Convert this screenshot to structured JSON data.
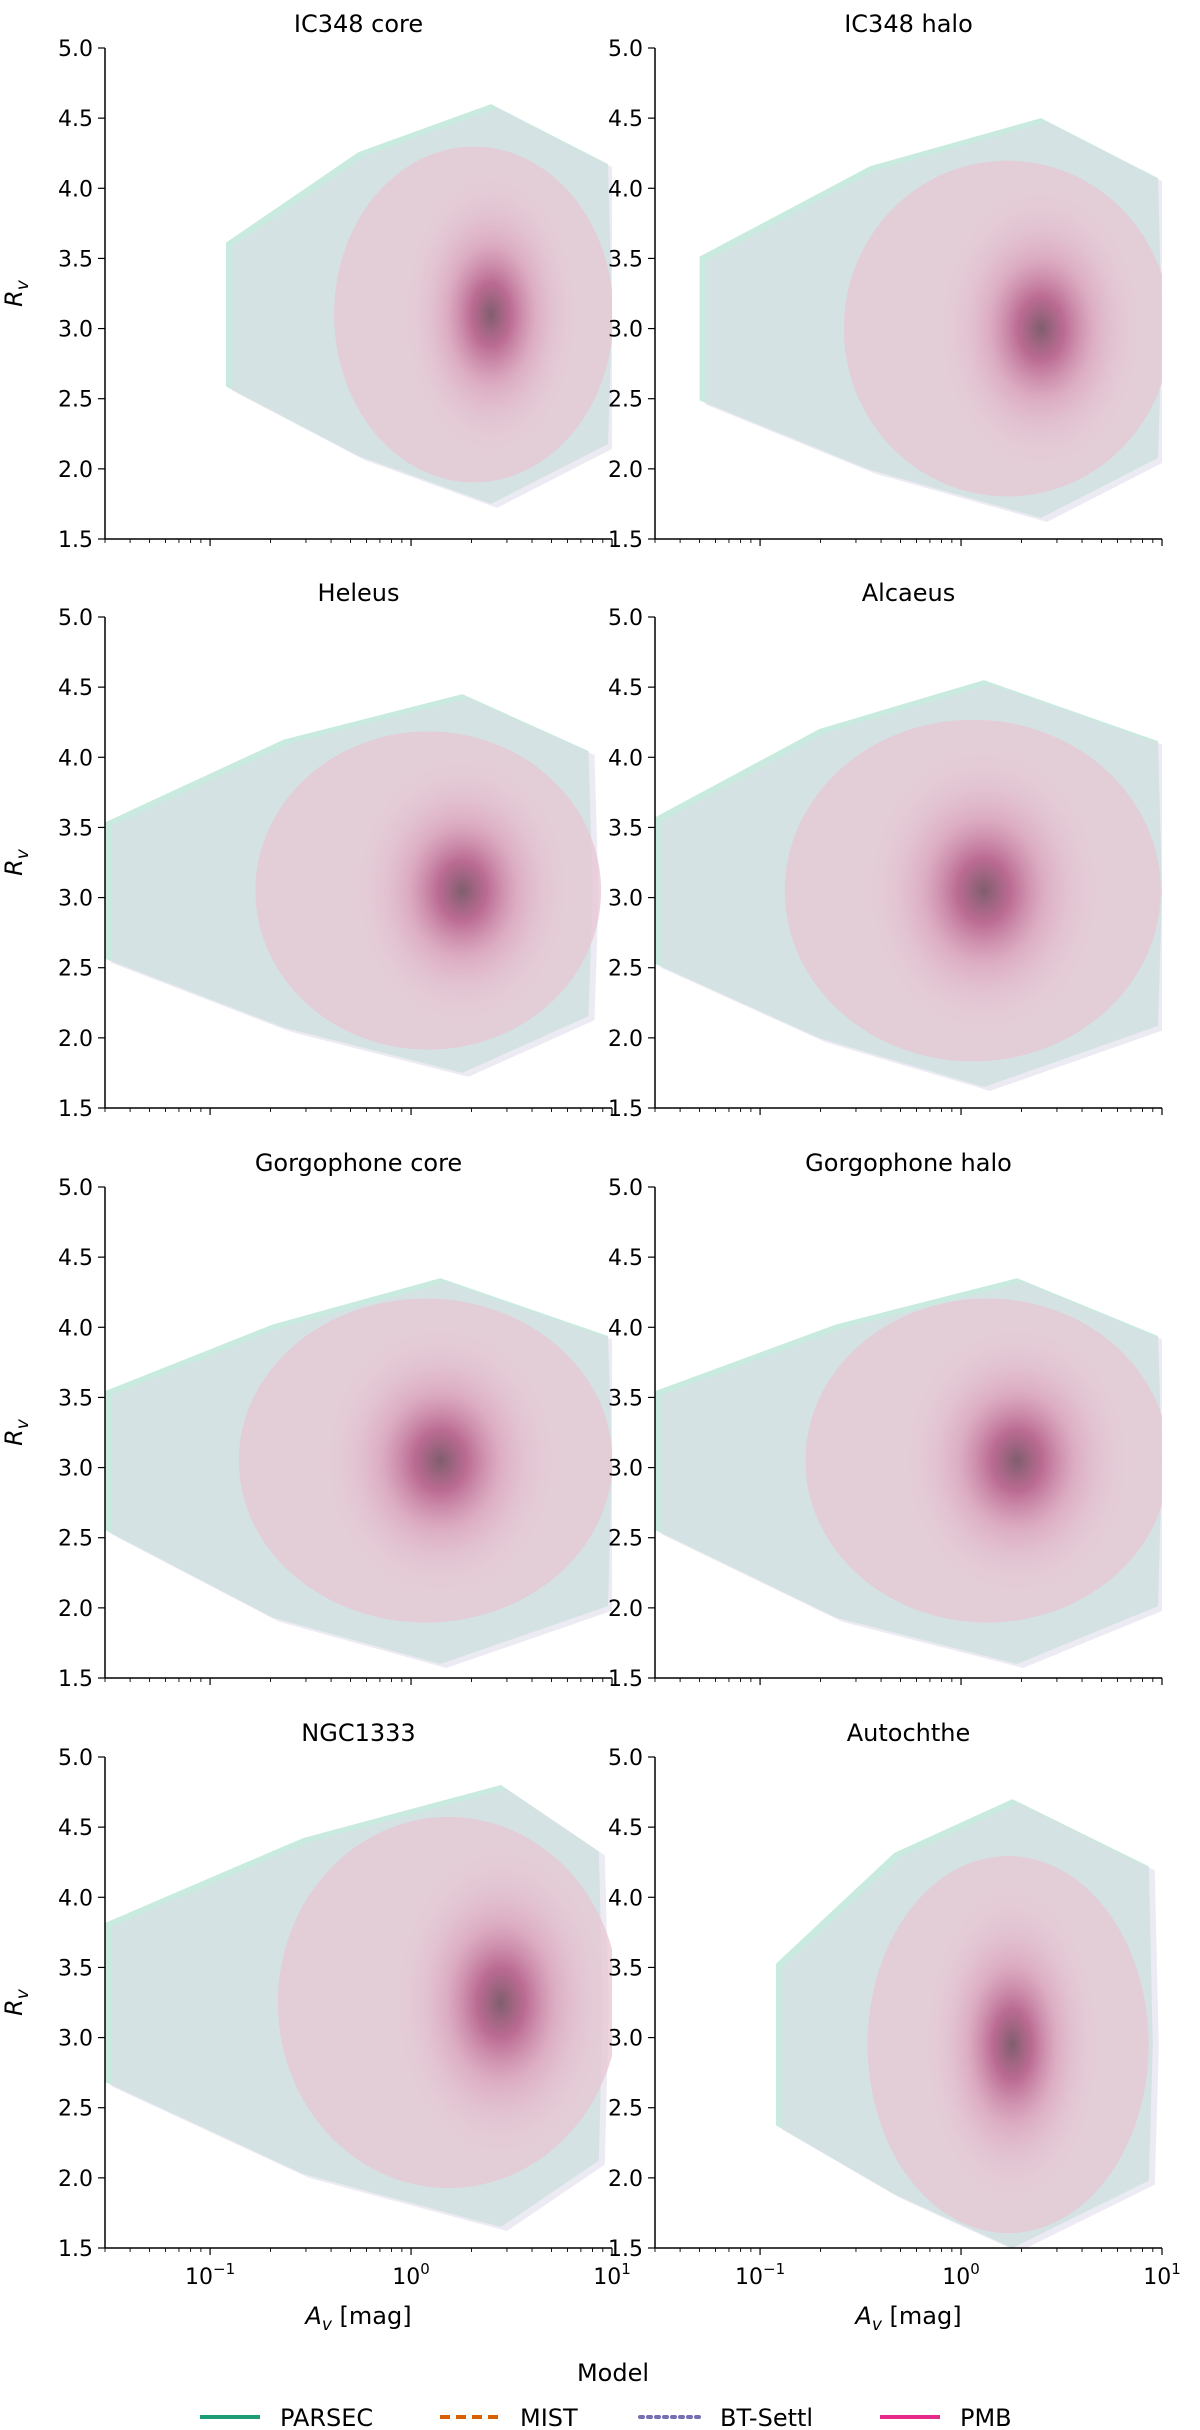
{
  "chart_data": {
    "type": "heatmap",
    "x_scale": "log",
    "xlim": [
      0.03,
      10
    ],
    "ylim": [
      1.5,
      5.0
    ],
    "xlabel": "A_v [mag]",
    "ylabel": "R_v",
    "x_ticks": [
      {
        "value": 0.1,
        "base": "10",
        "exp": "−1"
      },
      {
        "value": 1,
        "base": "10",
        "exp": "0"
      },
      {
        "value": 10,
        "base": "10",
        "exp": "1"
      }
    ],
    "y_ticks": [
      {
        "value": 1.5,
        "label": "1.5"
      },
      {
        "value": 2.0,
        "label": "2.0"
      },
      {
        "value": 2.5,
        "label": "2.5"
      },
      {
        "value": 3.0,
        "label": "3.0"
      },
      {
        "value": 3.5,
        "label": "3.5"
      },
      {
        "value": 4.0,
        "label": "4.0"
      },
      {
        "value": 4.5,
        "label": "4.5"
      },
      {
        "value": 5.0,
        "label": "5.0"
      }
    ],
    "panels": [
      {
        "title": "IC348 core",
        "av_range": [
          0.12,
          10
        ],
        "rv_range": [
          1.75,
          4.6
        ],
        "peak": [
          2.5,
          3.1
        ]
      },
      {
        "title": "IC348 halo",
        "av_range": [
          0.05,
          10
        ],
        "rv_range": [
          1.65,
          4.5
        ],
        "peak": [
          2.5,
          3.0
        ]
      },
      {
        "title": "Heleus",
        "av_range": [
          0.03,
          8
        ],
        "rv_range": [
          1.75,
          4.45
        ],
        "peak": [
          1.8,
          3.05
        ]
      },
      {
        "title": "Alcaeus",
        "av_range": [
          0.03,
          10
        ],
        "rv_range": [
          1.65,
          4.55
        ],
        "peak": [
          1.3,
          3.05
        ]
      },
      {
        "title": "Gorgophone core",
        "av_range": [
          0.03,
          10
        ],
        "rv_range": [
          1.6,
          4.35
        ],
        "peak": [
          1.4,
          3.05
        ]
      },
      {
        "title": "Gorgophone halo",
        "av_range": [
          0.03,
          10
        ],
        "rv_range": [
          1.6,
          4.35
        ],
        "peak": [
          1.9,
          3.05
        ]
      },
      {
        "title": "NGC1333",
        "av_range": [
          0.03,
          9
        ],
        "rv_range": [
          1.65,
          4.8
        ],
        "peak": [
          2.8,
          3.25
        ]
      },
      {
        "title": "Autochthe",
        "av_range": [
          0.12,
          9
        ],
        "rv_range": [
          1.5,
          4.7
        ],
        "peak": [
          1.8,
          2.95
        ]
      }
    ],
    "legend": {
      "title": "Model",
      "position": "bottom-center",
      "entries": [
        {
          "name": "PARSEC",
          "color": "#1b9e77",
          "style": "solid"
        },
        {
          "name": "MIST",
          "color": "#d95f02",
          "style": "dashed"
        },
        {
          "name": "BT-Settl",
          "color": "#7570b3",
          "style": "dotted"
        },
        {
          "name": "PMB",
          "color": "#e7298a",
          "style": "solid"
        }
      ]
    }
  }
}
